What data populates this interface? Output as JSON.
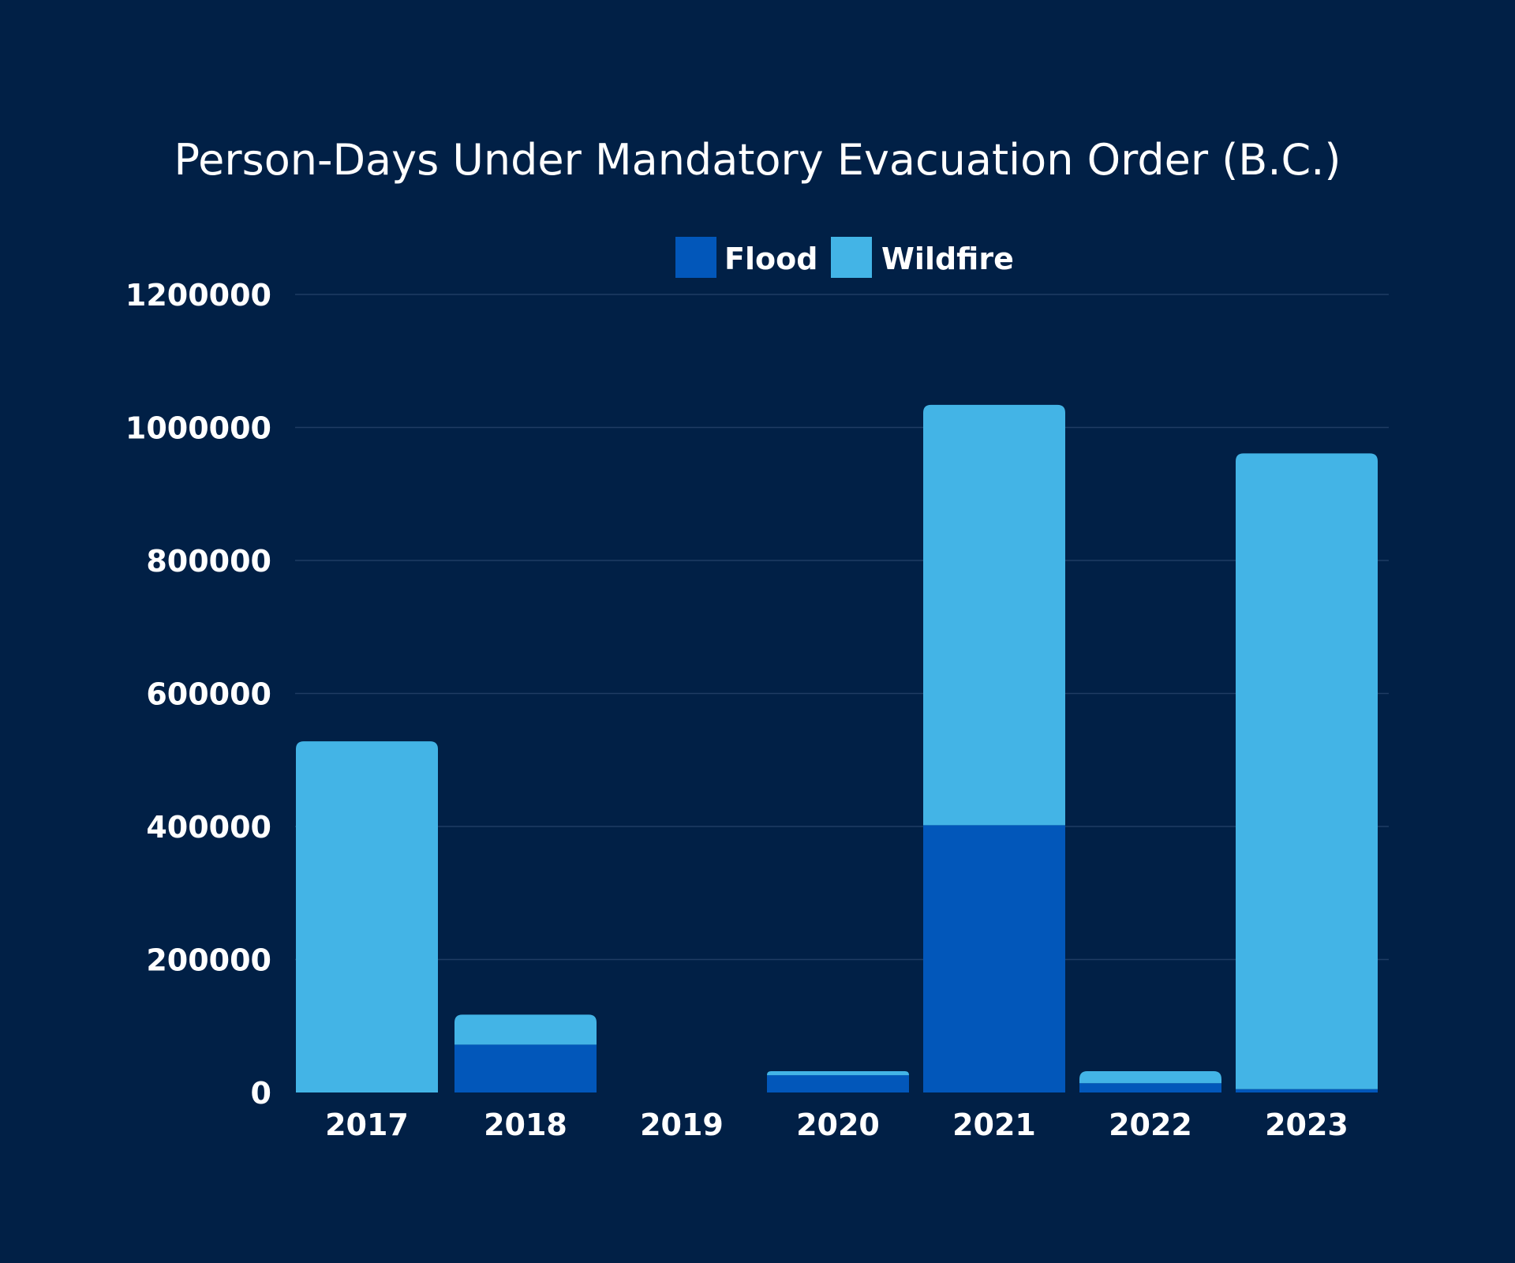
{
  "chart_data": {
    "type": "bar",
    "stacked": true,
    "title": "Person-Days Under Mandatory Evacuation Order (B.C.)",
    "xlabel": "",
    "ylabel": "",
    "categories": [
      "2017",
      "2018",
      "2019",
      "2020",
      "2021",
      "2022",
      "2023"
    ],
    "series": [
      {
        "name": "Flood",
        "color": "#0257BA",
        "values": [
          0,
          72000,
          0,
          26000,
          402000,
          14000,
          5000
        ]
      },
      {
        "name": "Wildfire",
        "color": "#43B4E6",
        "values": [
          528000,
          45000,
          0,
          6000,
          632000,
          18000,
          956000
        ]
      }
    ],
    "yticks": [
      "0",
      "200000",
      "400000",
      "600000",
      "800000",
      "1000000",
      "1200000"
    ],
    "ylim": [
      0,
      1200000
    ],
    "grid": true,
    "legend_position": "top-center",
    "background": "#012046"
  }
}
